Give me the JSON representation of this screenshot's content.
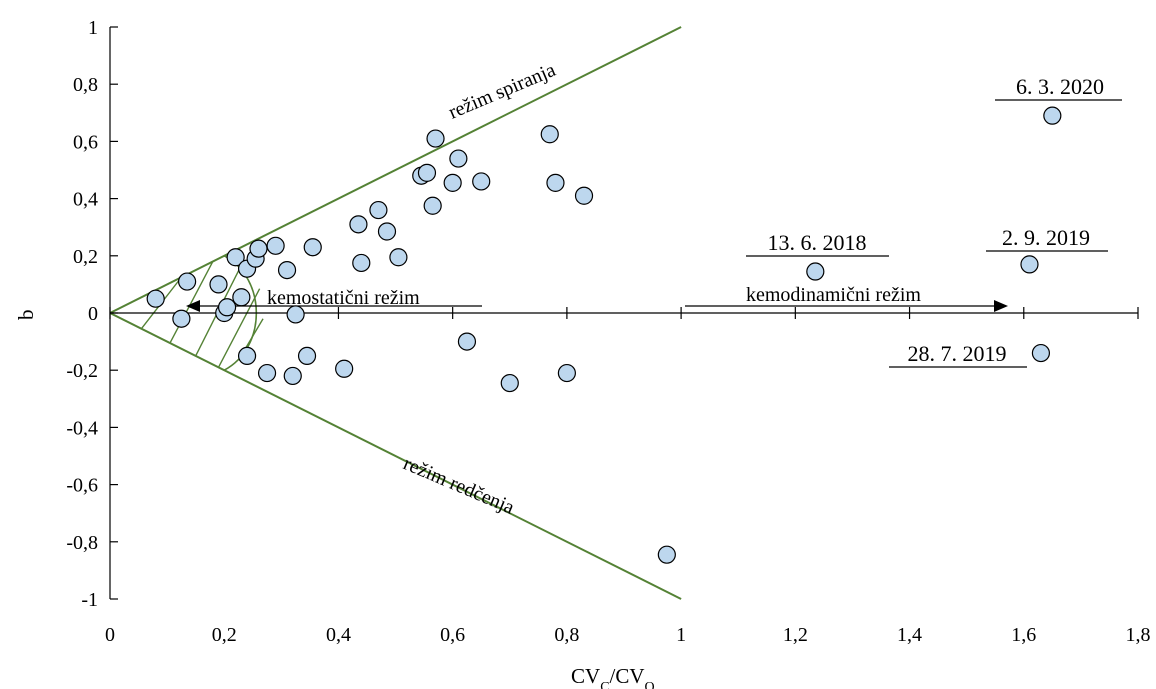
{
  "chart_data": {
    "type": "scatter",
    "xlabel_main": "CV",
    "xlabel_sub1": "C",
    "xlabel_sep": "/CV",
    "xlabel_sub2": "Q",
    "ylabel": "b",
    "xlim": [
      0,
      1.8
    ],
    "ylim": [
      -1,
      1
    ],
    "x_ticks": [
      0,
      0.2,
      0.4,
      0.6,
      0.8,
      1,
      1.2,
      1.4,
      1.6,
      1.8
    ],
    "x_tick_labels": [
      "0",
      "0,2",
      "0,4",
      "0,6",
      "0,8",
      "1",
      "1,2",
      "1,4",
      "1,6",
      "1,8"
    ],
    "y_ticks": [
      1,
      0.8,
      0.6,
      0.4,
      0.2,
      0,
      -0.2,
      -0.4,
      -0.6,
      -0.8,
      -1
    ],
    "y_tick_labels": [
      "1",
      "0,8",
      "0,6",
      "0,4",
      "0,2",
      "0",
      "-0,2",
      "-0,4",
      "-0,6",
      "-0,8",
      "-1"
    ],
    "marker_fill": "#bdd7ee",
    "boundary_color": "#548235",
    "regions": {
      "flushing": "režim spiranja",
      "dilution": "režim redčenja",
      "chemostatic": "kemostatični režim",
      "chemodynamic": "kemodinamični režim"
    },
    "annotations": [
      {
        "label": "6. 3. 2020",
        "x": 1.65,
        "y": 0.69
      },
      {
        "label": "13. 6. 2018",
        "x": 1.235,
        "y": 0.145
      },
      {
        "label": "2. 9. 2019",
        "x": 1.61,
        "y": 0.17
      },
      {
        "label": "28. 7. 2019",
        "x": 1.63,
        "y": -0.14
      }
    ],
    "points": [
      {
        "x": 0.08,
        "y": 0.05
      },
      {
        "x": 0.125,
        "y": -0.02
      },
      {
        "x": 0.135,
        "y": 0.11
      },
      {
        "x": 0.19,
        "y": 0.1
      },
      {
        "x": 0.2,
        "y": 0.0
      },
      {
        "x": 0.205,
        "y": 0.02
      },
      {
        "x": 0.22,
        "y": 0.195
      },
      {
        "x": 0.23,
        "y": 0.055
      },
      {
        "x": 0.24,
        "y": 0.155
      },
      {
        "x": 0.24,
        "y": -0.15
      },
      {
        "x": 0.255,
        "y": 0.19
      },
      {
        "x": 0.26,
        "y": 0.225
      },
      {
        "x": 0.275,
        "y": -0.21
      },
      {
        "x": 0.29,
        "y": 0.235
      },
      {
        "x": 0.31,
        "y": 0.15
      },
      {
        "x": 0.32,
        "y": -0.22
      },
      {
        "x": 0.325,
        "y": -0.005
      },
      {
        "x": 0.345,
        "y": -0.15
      },
      {
        "x": 0.355,
        "y": 0.23
      },
      {
        "x": 0.41,
        "y": -0.195
      },
      {
        "x": 0.435,
        "y": 0.31
      },
      {
        "x": 0.44,
        "y": 0.175
      },
      {
        "x": 0.47,
        "y": 0.36
      },
      {
        "x": 0.485,
        "y": 0.285
      },
      {
        "x": 0.505,
        "y": 0.195
      },
      {
        "x": 0.545,
        "y": 0.48
      },
      {
        "x": 0.555,
        "y": 0.49
      },
      {
        "x": 0.565,
        "y": 0.375
      },
      {
        "x": 0.57,
        "y": 0.61
      },
      {
        "x": 0.6,
        "y": 0.455
      },
      {
        "x": 0.61,
        "y": 0.54
      },
      {
        "x": 0.625,
        "y": -0.1
      },
      {
        "x": 0.65,
        "y": 0.46
      },
      {
        "x": 0.7,
        "y": -0.245
      },
      {
        "x": 0.77,
        "y": 0.625
      },
      {
        "x": 0.78,
        "y": 0.455
      },
      {
        "x": 0.8,
        "y": -0.21
      },
      {
        "x": 0.83,
        "y": 0.41
      },
      {
        "x": 0.975,
        "y": -0.845
      },
      {
        "x": 1.235,
        "y": 0.145
      },
      {
        "x": 1.61,
        "y": 0.17
      },
      {
        "x": 1.63,
        "y": -0.14
      },
      {
        "x": 1.65,
        "y": 0.69
      }
    ]
  }
}
